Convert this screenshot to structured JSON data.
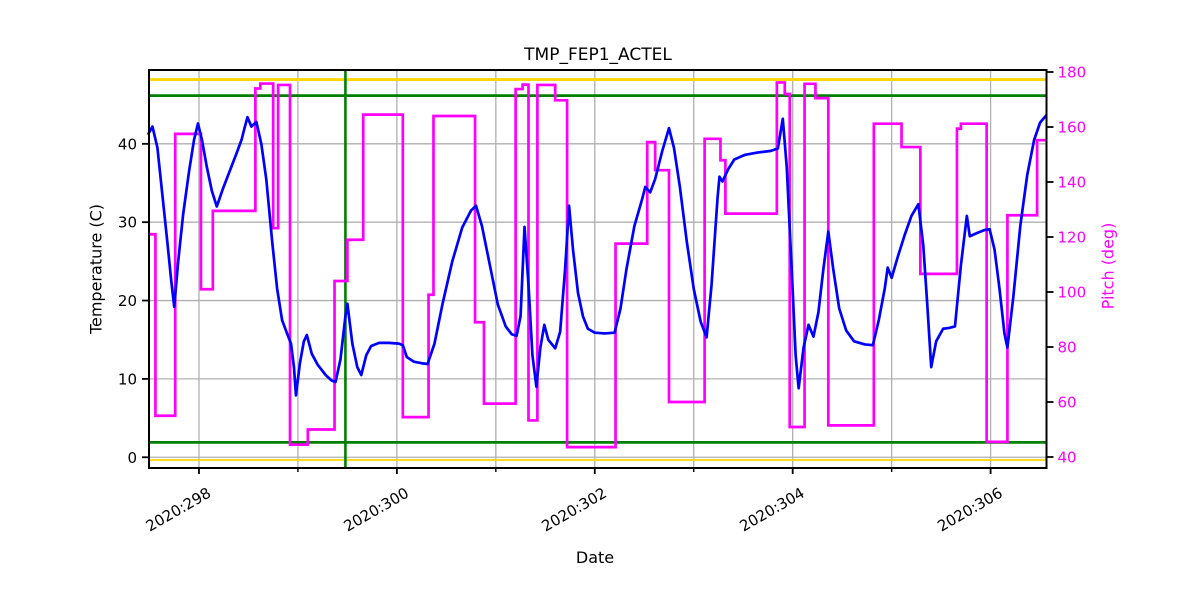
{
  "figure": {
    "title": "TMP_FEP1_ACTEL"
  },
  "axes": {
    "x": {
      "label": "Date",
      "tick_labels": [
        "2020:298",
        "2020:300",
        "2020:302",
        "2020:304",
        "2020:306"
      ],
      "tick_days": [
        298,
        300,
        302,
        304,
        306
      ],
      "minor_tick_days": [
        299,
        301,
        303,
        305
      ]
    },
    "y_left": {
      "label": "Temperature (C)",
      "ticks": [
        0,
        10,
        20,
        30,
        40
      ],
      "color": "#000000"
    },
    "y_right": {
      "label": "Pitch (deg)",
      "ticks": [
        40,
        60,
        80,
        100,
        120,
        140,
        160,
        180
      ],
      "color": "#ff00ff"
    }
  },
  "chart_data": {
    "type": "line",
    "title": "TMP_FEP1_ACTEL",
    "xlabel": "Date",
    "ylabel_left": "Temperature (C)",
    "ylabel_right": "Pitch (deg)",
    "x_range": [
      297.495,
      306.565
    ],
    "y_left_range": [
      -1.37,
      49.42
    ],
    "y_right_range": [
      36.0,
      180.73
    ],
    "x_gridline_days": [
      298,
      299,
      300,
      301,
      302,
      303,
      304,
      305,
      306
    ],
    "grid_color": "#b0b0b0",
    "legend": "none",
    "series": [
      {
        "name": "temperature",
        "label": "TMP_FEP1_ACTEL",
        "axis": "left",
        "color": "#0000ff",
        "points": [
          [
            297.49,
            41.3
          ],
          [
            297.53,
            42.2
          ],
          [
            297.58,
            39.5
          ],
          [
            297.63,
            33.5
          ],
          [
            297.68,
            27.5
          ],
          [
            297.72,
            22.5
          ],
          [
            297.75,
            19.2
          ],
          [
            297.79,
            25.0
          ],
          [
            297.84,
            31.0
          ],
          [
            297.9,
            36.5
          ],
          [
            297.95,
            40.5
          ],
          [
            297.99,
            42.6
          ],
          [
            298.03,
            40.5
          ],
          [
            298.08,
            37.0
          ],
          [
            298.13,
            34.0
          ],
          [
            298.18,
            32.0
          ],
          [
            298.24,
            34.2
          ],
          [
            298.31,
            36.5
          ],
          [
            298.38,
            38.8
          ],
          [
            298.43,
            40.5
          ],
          [
            298.46,
            42.0
          ],
          [
            298.49,
            43.4
          ],
          [
            298.53,
            42.2
          ],
          [
            298.58,
            42.8
          ],
          [
            298.63,
            40.0
          ],
          [
            298.68,
            35.5
          ],
          [
            298.74,
            27.5
          ],
          [
            298.79,
            21.5
          ],
          [
            298.84,
            17.5
          ],
          [
            298.89,
            15.8
          ],
          [
            298.93,
            14.5
          ],
          [
            298.96,
            11.5
          ],
          [
            298.98,
            7.9
          ],
          [
            299.02,
            12.0
          ],
          [
            299.06,
            14.8
          ],
          [
            299.09,
            15.6
          ],
          [
            299.14,
            13.2
          ],
          [
            299.2,
            11.8
          ],
          [
            299.28,
            10.5
          ],
          [
            299.34,
            9.8
          ],
          [
            299.38,
            9.6
          ],
          [
            299.43,
            12.5
          ],
          [
            299.48,
            18.0
          ],
          [
            299.5,
            19.6
          ],
          [
            299.55,
            14.5
          ],
          [
            299.6,
            11.5
          ],
          [
            299.64,
            10.5
          ],
          [
            299.69,
            13.0
          ],
          [
            299.74,
            14.2
          ],
          [
            299.82,
            14.6
          ],
          [
            299.92,
            14.6
          ],
          [
            300.02,
            14.5
          ],
          [
            300.06,
            14.3
          ],
          [
            300.1,
            12.8
          ],
          [
            300.17,
            12.2
          ],
          [
            300.25,
            12.0
          ],
          [
            300.31,
            11.9
          ],
          [
            300.38,
            14.5
          ],
          [
            300.46,
            19.5
          ],
          [
            300.56,
            25.0
          ],
          [
            300.66,
            29.3
          ],
          [
            300.75,
            31.5
          ],
          [
            300.8,
            32.1
          ],
          [
            300.86,
            29.5
          ],
          [
            300.94,
            24.5
          ],
          [
            301.02,
            19.5
          ],
          [
            301.1,
            16.7
          ],
          [
            301.16,
            15.7
          ],
          [
            301.21,
            15.5
          ],
          [
            301.25,
            18.0
          ],
          [
            301.29,
            29.4
          ],
          [
            301.33,
            22.0
          ],
          [
            301.37,
            13.0
          ],
          [
            301.41,
            9.0
          ],
          [
            301.45,
            14.0
          ],
          [
            301.49,
            16.9
          ],
          [
            301.53,
            15.0
          ],
          [
            301.6,
            13.9
          ],
          [
            301.65,
            16.0
          ],
          [
            301.7,
            24.0
          ],
          [
            301.74,
            32.1
          ],
          [
            301.78,
            26.5
          ],
          [
            301.83,
            21.0
          ],
          [
            301.88,
            18.0
          ],
          [
            301.93,
            16.4
          ],
          [
            302.0,
            15.9
          ],
          [
            302.1,
            15.8
          ],
          [
            302.2,
            15.9
          ],
          [
            302.26,
            19.0
          ],
          [
            302.32,
            24.0
          ],
          [
            302.4,
            29.5
          ],
          [
            302.48,
            33.0
          ],
          [
            302.51,
            34.5
          ],
          [
            302.56,
            33.8
          ],
          [
            302.61,
            35.5
          ],
          [
            302.68,
            39.0
          ],
          [
            302.75,
            42.0
          ],
          [
            302.8,
            39.5
          ],
          [
            302.86,
            34.5
          ],
          [
            302.93,
            27.5
          ],
          [
            303.0,
            21.5
          ],
          [
            303.07,
            17.3
          ],
          [
            303.13,
            15.3
          ],
          [
            303.18,
            22.0
          ],
          [
            303.24,
            33.0
          ],
          [
            303.26,
            35.8
          ],
          [
            303.29,
            35.2
          ],
          [
            303.35,
            36.8
          ],
          [
            303.41,
            38.0
          ],
          [
            303.52,
            38.6
          ],
          [
            303.65,
            38.9
          ],
          [
            303.78,
            39.1
          ],
          [
            303.85,
            39.4
          ],
          [
            303.9,
            43.2
          ],
          [
            303.94,
            37.0
          ],
          [
            303.99,
            24.0
          ],
          [
            304.03,
            13.0
          ],
          [
            304.06,
            8.8
          ],
          [
            304.11,
            14.0
          ],
          [
            304.16,
            16.9
          ],
          [
            304.21,
            15.4
          ],
          [
            304.26,
            18.5
          ],
          [
            304.31,
            24.0
          ],
          [
            304.36,
            28.8
          ],
          [
            304.41,
            24.0
          ],
          [
            304.47,
            19.0
          ],
          [
            304.54,
            16.2
          ],
          [
            304.62,
            14.8
          ],
          [
            304.73,
            14.4
          ],
          [
            304.81,
            14.3
          ],
          [
            304.87,
            17.5
          ],
          [
            304.93,
            21.5
          ],
          [
            304.96,
            24.2
          ],
          [
            305.0,
            22.9
          ],
          [
            305.06,
            25.5
          ],
          [
            305.13,
            28.3
          ],
          [
            305.2,
            30.8
          ],
          [
            305.27,
            32.3
          ],
          [
            305.32,
            27.0
          ],
          [
            305.36,
            19.5
          ],
          [
            305.4,
            11.5
          ],
          [
            305.45,
            14.8
          ],
          [
            305.52,
            16.4
          ],
          [
            305.58,
            16.5
          ],
          [
            305.64,
            16.7
          ],
          [
            305.7,
            24.5
          ],
          [
            305.76,
            30.8
          ],
          [
            305.79,
            28.2
          ],
          [
            305.86,
            28.6
          ],
          [
            305.94,
            29.0
          ],
          [
            305.99,
            29.1
          ],
          [
            306.04,
            26.5
          ],
          [
            306.09,
            21.5
          ],
          [
            306.14,
            15.8
          ],
          [
            306.17,
            14.0
          ],
          [
            306.23,
            20.5
          ],
          [
            306.3,
            29.5
          ],
          [
            306.37,
            36.0
          ],
          [
            306.44,
            40.5
          ],
          [
            306.5,
            42.7
          ],
          [
            306.56,
            43.6
          ]
        ]
      },
      {
        "name": "pitch",
        "label": "Pitch",
        "axis": "right",
        "color": "#ff00ff",
        "step_segments": [
          [
            297.49,
            297.56,
            121
          ],
          [
            297.56,
            297.76,
            55
          ],
          [
            297.76,
            298.02,
            157.5
          ],
          [
            298.02,
            298.14,
            101
          ],
          [
            298.14,
            298.57,
            129.5
          ],
          [
            298.57,
            298.62,
            174
          ],
          [
            298.62,
            298.75,
            175.8
          ],
          [
            298.75,
            298.8,
            123.2
          ],
          [
            298.8,
            298.92,
            175.3
          ],
          [
            298.92,
            299.1,
            44.5
          ],
          [
            299.1,
            299.37,
            50
          ],
          [
            299.37,
            299.5,
            104
          ],
          [
            299.5,
            299.66,
            119
          ],
          [
            299.66,
            300.06,
            164.5
          ],
          [
            300.06,
            300.32,
            54.5
          ],
          [
            300.32,
            300.37,
            99
          ],
          [
            300.37,
            300.79,
            164
          ],
          [
            300.79,
            300.88,
            89
          ],
          [
            300.88,
            301.2,
            59.4
          ],
          [
            301.2,
            301.27,
            173.8
          ],
          [
            301.27,
            301.33,
            175.4
          ],
          [
            301.33,
            301.42,
            53.3
          ],
          [
            301.42,
            301.6,
            175.3
          ],
          [
            301.6,
            301.72,
            169.7
          ],
          [
            301.72,
            302.21,
            43.6
          ],
          [
            302.21,
            302.53,
            117.6
          ],
          [
            302.53,
            302.61,
            154.5
          ],
          [
            302.61,
            302.75,
            144.3
          ],
          [
            302.75,
            303.11,
            60
          ],
          [
            303.11,
            303.27,
            155.7
          ],
          [
            303.27,
            303.32,
            147.9
          ],
          [
            303.32,
            303.84,
            128.5
          ],
          [
            303.84,
            303.92,
            176.2
          ],
          [
            303.92,
            303.97,
            172
          ],
          [
            303.97,
            304.12,
            50.9
          ],
          [
            304.12,
            304.23,
            175.7
          ],
          [
            304.23,
            304.36,
            170.5
          ],
          [
            304.36,
            304.82,
            51.5
          ],
          [
            304.82,
            305.1,
            161.2
          ],
          [
            305.1,
            305.29,
            152.7
          ],
          [
            305.29,
            305.66,
            106.6
          ],
          [
            305.66,
            305.7,
            159.4
          ],
          [
            305.7,
            305.96,
            161.2
          ],
          [
            305.96,
            306.17,
            45.5
          ],
          [
            306.17,
            306.47,
            127.9
          ],
          [
            306.47,
            306.57,
            155.2
          ]
        ]
      }
    ],
    "limit_lines": [
      {
        "orient": "h",
        "axis": "left",
        "value": 48.2,
        "color": "#ffd700",
        "width": 2.8,
        "name": "yellow-high-limit"
      },
      {
        "orient": "h",
        "axis": "left",
        "value": 46.15,
        "color": "#008000",
        "width": 2.8,
        "name": "green-high-limit"
      },
      {
        "orient": "h",
        "axis": "left",
        "value": 1.9,
        "color": "#008000",
        "width": 2.8,
        "name": "green-low-limit"
      },
      {
        "orient": "h",
        "axis": "left",
        "value": -0.35,
        "color": "#ffd700",
        "width": 1.8,
        "name": "yellow-low-limit"
      },
      {
        "orient": "v",
        "day": 299.48,
        "color": "#008000",
        "width": 2.6,
        "name": "green-vertical-marker"
      }
    ]
  }
}
